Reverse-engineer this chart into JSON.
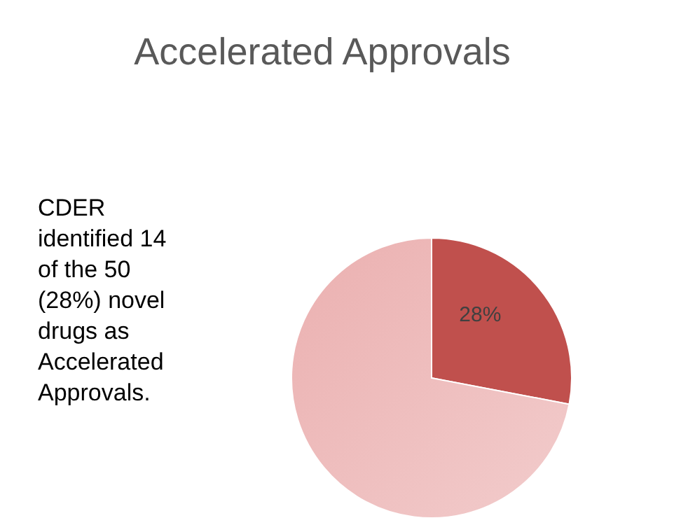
{
  "chart_data": {
    "type": "pie",
    "title": "Accelerated Approvals",
    "categories": [
      null,
      null
    ],
    "values": [
      28,
      72
    ],
    "colors": [
      "#c0504d",
      "#ebb0b0"
    ],
    "value_labels": [
      "28%",
      null
    ],
    "annotations": [
      "CDER identified 14 of the 50 (28%) novel drugs as Accelerated Approvals."
    ]
  }
}
